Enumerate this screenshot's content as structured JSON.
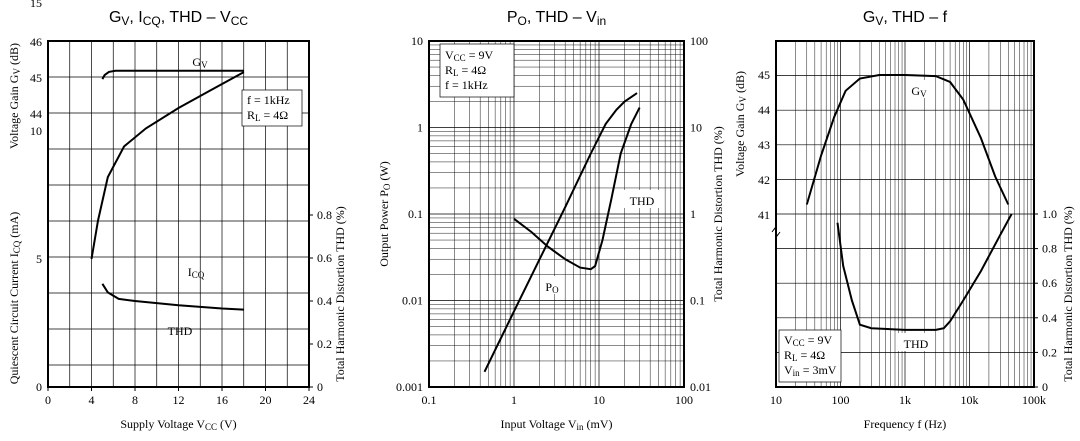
{
  "chart_data": [
    {
      "type": "line",
      "title": "G<sub>V</sub>, I<sub>CQ</sub>, THD – V<sub>CC</sub>",
      "xlabel": "Supply Voltage V<sub>CC</sub> (V)",
      "xlim": [
        0,
        24
      ],
      "x_ticks": [
        "0",
        "4",
        "8",
        "12",
        "16",
        "20",
        "24"
      ],
      "ylabel_gain": "Voltage Gain G<sub>V</sub> (dB)",
      "gain_ticks": [
        "44",
        "45",
        "46"
      ],
      "ylabel_current": "Quiescent Circuit Current I<sub>CQ</sub> (mA)",
      "current_ticks": [
        "0",
        "5",
        "10",
        "15"
      ],
      "ylabel_thd": "Total Harmonic Distortion THD (%)",
      "thd_ticks": [
        "0",
        "0.2",
        "0.4",
        "0.6",
        "0.8"
      ],
      "conditions": [
        "f = 1kHz",
        "R<sub>L</sub> = 4Ω"
      ],
      "series": [
        {
          "name": "G<sub>V</sub>",
          "axis": "gain",
          "x": [
            5,
            5.2,
            5.6,
            6.2,
            8,
            12,
            16,
            18
          ],
          "y": [
            44.97,
            45.08,
            45.17,
            45.2,
            45.2,
            45.2,
            45.2,
            45.2
          ]
        },
        {
          "name": "I<sub>CQ</sub>",
          "axis": "current",
          "x": [
            4,
            4.6,
            5.5,
            7,
            9,
            12,
            15,
            18
          ],
          "y": [
            5,
            6.5,
            8.2,
            9.4,
            10.1,
            10.9,
            11.6,
            12.3
          ]
        },
        {
          "name": "THD",
          "axis": "thd",
          "x": [
            5,
            5.5,
            6.5,
            8,
            12,
            16,
            18
          ],
          "y": [
            0.48,
            0.44,
            0.41,
            0.4,
            0.38,
            0.365,
            0.36
          ]
        }
      ]
    },
    {
      "type": "line",
      "title": "P<sub>O</sub>, THD – V<sub>in</sub>",
      "xlabel": "Input Voltage V<sub>in</sub> (mV)",
      "xscale": "log",
      "xlim": [
        0.1,
        100
      ],
      "x_ticks": [
        "0.1",
        "1",
        "10",
        "100"
      ],
      "ylabel_left": "Output Power P<sub>O</sub> (W)",
      "yscale_left": "log",
      "ylim_left": [
        0.001,
        10
      ],
      "left_ticks": [
        "0.001",
        "0.01",
        "0.1",
        "1",
        "10"
      ],
      "ylabel_right": "Total Harmonic Distortion THD (%)",
      "yscale_right": "log",
      "ylim_right": [
        0.01,
        100
      ],
      "right_ticks": [
        "0.01",
        "0.1",
        "1",
        "10",
        "100"
      ],
      "conditions": [
        "V<sub>CC</sub> = 9V",
        "R<sub>L</sub> = 4Ω",
        "f = 1kHz"
      ],
      "series": [
        {
          "name": "P<sub>O</sub>",
          "axis": "left",
          "x": [
            0.45,
            1,
            2,
            4,
            8,
            12,
            16,
            20,
            28
          ],
          "y": [
            0.0015,
            0.0075,
            0.03,
            0.12,
            0.5,
            1.1,
            1.6,
            2.0,
            2.5
          ]
        },
        {
          "name": "THD",
          "axis": "right",
          "x": [
            1,
            1.6,
            2.5,
            4,
            6,
            8,
            9,
            11,
            14,
            18,
            24,
            30
          ],
          "y": [
            0.88,
            0.62,
            0.42,
            0.3,
            0.24,
            0.23,
            0.25,
            0.5,
            1.5,
            5,
            11,
            17
          ]
        }
      ]
    },
    {
      "type": "line",
      "title": "G<sub>V</sub>, THD – f",
      "xlabel": "Frequency f (Hz)",
      "xscale": "log",
      "xlim": [
        10,
        100000
      ],
      "x_ticks": [
        "10",
        "100",
        "1k",
        "10k",
        "100k"
      ],
      "ylabel_gain": "Voltage Gain G<sub>V</sub> (dB)",
      "gain_ticks": [
        "41",
        "42",
        "43",
        "44",
        "45"
      ],
      "ylabel_thd": "Total Harmonic Distortion THD (%)",
      "thd_ticks": [
        "0",
        "0.2",
        "0.4",
        "0.6",
        "0.8",
        "1.0"
      ],
      "conditions": [
        "V<sub>CC</sub> = 9V",
        "R<sub>L</sub> = 4Ω",
        "V<sub>in</sub> = 3mV"
      ],
      "series": [
        {
          "name": "G<sub>V</sub>",
          "axis": "gain",
          "x": [
            30,
            50,
            80,
            120,
            200,
            400,
            1000,
            3000,
            5000,
            8000,
            15000,
            25000,
            40000
          ],
          "y": [
            41.3,
            42.7,
            43.8,
            44.55,
            44.9,
            45.0,
            45.0,
            44.97,
            44.8,
            44.3,
            43.2,
            42.1,
            41.3
          ]
        },
        {
          "name": "THD",
          "axis": "thd",
          "x": [
            90,
            110,
            150,
            200,
            300,
            1000,
            3000,
            4000,
            5000,
            8000,
            15000,
            30000,
            45000
          ],
          "y": [
            0.95,
            0.7,
            0.5,
            0.36,
            0.34,
            0.33,
            0.33,
            0.34,
            0.38,
            0.5,
            0.67,
            0.88,
            1.0
          ]
        }
      ]
    }
  ]
}
